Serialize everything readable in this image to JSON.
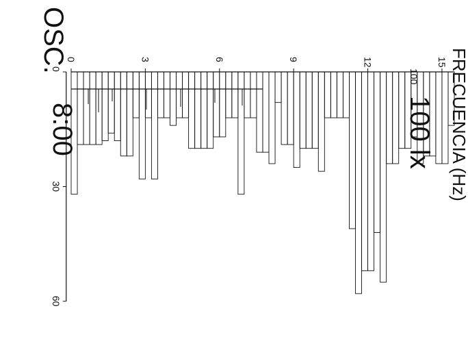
{
  "chart_data": [
    {
      "type": "bar",
      "title": "OSC.",
      "subtitle": "8:00",
      "xlabel": "",
      "ylabel": "",
      "xlim": [
        0,
        15.5
      ],
      "ylim": [
        0,
        60
      ],
      "xticks": [
        "0",
        "3",
        "6",
        "9",
        "12",
        "15"
      ],
      "yticks": [
        "0",
        "30",
        "60"
      ],
      "bin_width": 0.25,
      "bin_starts": [
        0,
        0.25,
        0.5,
        0.75,
        1,
        1.25,
        1.5,
        1.75,
        2,
        2.25,
        2.5,
        2.75,
        3,
        3.25,
        3.5,
        3.75,
        4,
        4.25,
        4.5,
        4.75,
        5,
        5.25,
        5.5,
        5.75,
        6,
        6.25,
        6.5,
        6.75,
        7,
        7.25,
        7.5,
        7.75,
        8,
        8.25,
        8.5,
        8.75,
        9,
        9.25,
        9.5,
        9.75,
        10,
        10.25,
        10.5,
        10.75,
        11,
        11.25,
        11.5,
        11.75,
        12,
        12.25,
        12.5,
        12.75,
        13,
        13.25,
        13.5,
        13.75,
        14,
        14.25,
        14.5,
        14.75,
        15,
        15.25
      ],
      "values": [
        32,
        19,
        19,
        19,
        19,
        18,
        16,
        18,
        22,
        22,
        12,
        28,
        12,
        28,
        12,
        12,
        14,
        12,
        12,
        20,
        20,
        20,
        20,
        17,
        17,
        12,
        12,
        32,
        12,
        12,
        21,
        21,
        24,
        8,
        19,
        19,
        25,
        20,
        20,
        20,
        26,
        12,
        12,
        12,
        12,
        41,
        58,
        52,
        52,
        42,
        55,
        24,
        24,
        20,
        20,
        17,
        24,
        22,
        22,
        24,
        24,
        14
      ]
    },
    {
      "type": "bar",
      "title": "100 lx",
      "xlabel": "",
      "ylabel": "",
      "yticks": [
        "100"
      ],
      "partial": true
    }
  ],
  "axis_label": "FRECUENCIA (Hz)",
  "colors": {
    "ink": "#111111",
    "background": "#ffffff"
  }
}
